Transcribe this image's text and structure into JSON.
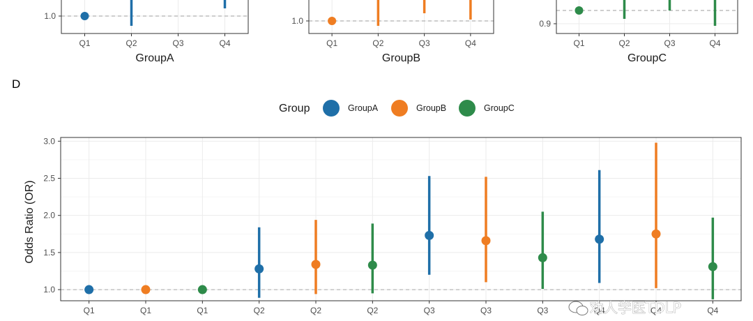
{
  "colors": {
    "GroupA": "#1f6fa8",
    "GroupB": "#ef7d22",
    "GroupC": "#2e8b4a",
    "grid": "#ebebeb",
    "refline": "#bdbdbd",
    "panel_border": "#333333"
  },
  "top_panels": [
    {
      "xlabel": "GroupA",
      "categories": [
        "Q1",
        "Q2",
        "Q3",
        "Q4"
      ],
      "ytick": "1.0",
      "q1_or": 1.0
    },
    {
      "xlabel": "GroupB",
      "categories": [
        "Q1",
        "Q2",
        "Q3",
        "Q4"
      ],
      "ytick": "1.0",
      "q1_or": 1.0
    },
    {
      "xlabel": "GroupC",
      "categories": [
        "Q1",
        "Q2",
        "Q3",
        "Q4"
      ],
      "ytick": "0.9",
      "q1_or": 0.92
    }
  ],
  "panel_d": {
    "label": "D",
    "legend_title": "Group",
    "legend": [
      "GroupA",
      "GroupB",
      "GroupC"
    ]
  },
  "watermark": "劝人学医TDLP",
  "chart_data": {
    "type": "scatter",
    "subtype": "point-range (odds ratio with 95% CI)",
    "ylabel": "Odds Ratio (OR)",
    "xlabel": "",
    "ylim": [
      0.85,
      3.05
    ],
    "yticks": [
      "1.0",
      "1.5",
      "2.0",
      "2.5",
      "3.0"
    ],
    "reference_line": 1.0,
    "categories": [
      "Q1",
      "Q1",
      "Q1",
      "Q2",
      "Q2",
      "Q2",
      "Q3",
      "Q3",
      "Q3",
      "Q4",
      "Q4",
      "Q4"
    ],
    "points": [
      {
        "x": "Q1",
        "group": "GroupA",
        "or": 1.0,
        "lo": 1.0,
        "hi": 1.0
      },
      {
        "x": "Q1",
        "group": "GroupB",
        "or": 1.0,
        "lo": 1.0,
        "hi": 1.0
      },
      {
        "x": "Q1",
        "group": "GroupC",
        "or": 1.0,
        "lo": 1.0,
        "hi": 1.0
      },
      {
        "x": "Q2",
        "group": "GroupA",
        "or": 1.28,
        "lo": 0.89,
        "hi": 1.84
      },
      {
        "x": "Q2",
        "group": "GroupB",
        "or": 1.34,
        "lo": 0.94,
        "hi": 1.94
      },
      {
        "x": "Q2",
        "group": "GroupC",
        "or": 1.33,
        "lo": 0.95,
        "hi": 1.89
      },
      {
        "x": "Q3",
        "group": "GroupA",
        "or": 1.73,
        "lo": 1.2,
        "hi": 2.53
      },
      {
        "x": "Q3",
        "group": "GroupB",
        "or": 1.66,
        "lo": 1.1,
        "hi": 2.52
      },
      {
        "x": "Q3",
        "group": "GroupC",
        "or": 1.43,
        "lo": 1.01,
        "hi": 2.05
      },
      {
        "x": "Q4",
        "group": "GroupA",
        "or": 1.68,
        "lo": 1.09,
        "hi": 2.61
      },
      {
        "x": "Q4",
        "group": "GroupB",
        "or": 1.75,
        "lo": 1.02,
        "hi": 2.98
      },
      {
        "x": "Q4",
        "group": "GroupC",
        "or": 1.31,
        "lo": 0.87,
        "hi": 1.97
      }
    ]
  }
}
